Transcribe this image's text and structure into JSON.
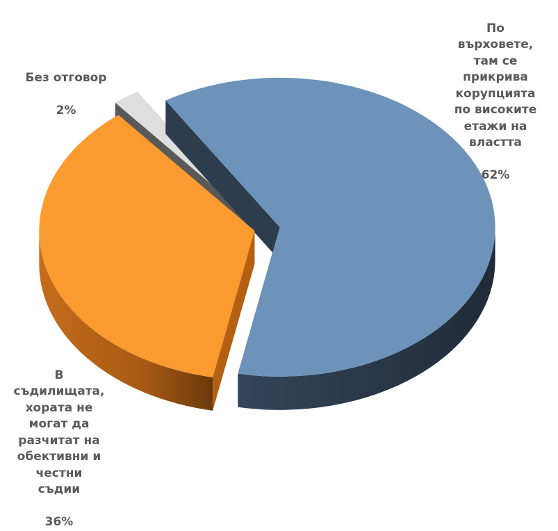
{
  "chart_data": {
    "type": "pie",
    "style": "3d-exploded",
    "title": "",
    "slices": [
      {
        "label": "По\nвърховете,\nтам се\nприкрива\nкорупцията\nпо високите\nетажи на\nвластта",
        "value": 62,
        "value_label": "62%",
        "color": "#6d93ba",
        "side_color": "#2e3d4d"
      },
      {
        "label": "В\nсъдилищата,\nхората не\nмогат да\nразчитат на\nобективни и\nчестни\nсъдии",
        "value": 36,
        "value_label": "36%",
        "color": "#fb9b2f",
        "side_color": "#b45f12"
      },
      {
        "label": "Без отговор",
        "value": 2,
        "value_label": "2%",
        "color": "#dedede",
        "side_color": "#595959"
      }
    ]
  }
}
